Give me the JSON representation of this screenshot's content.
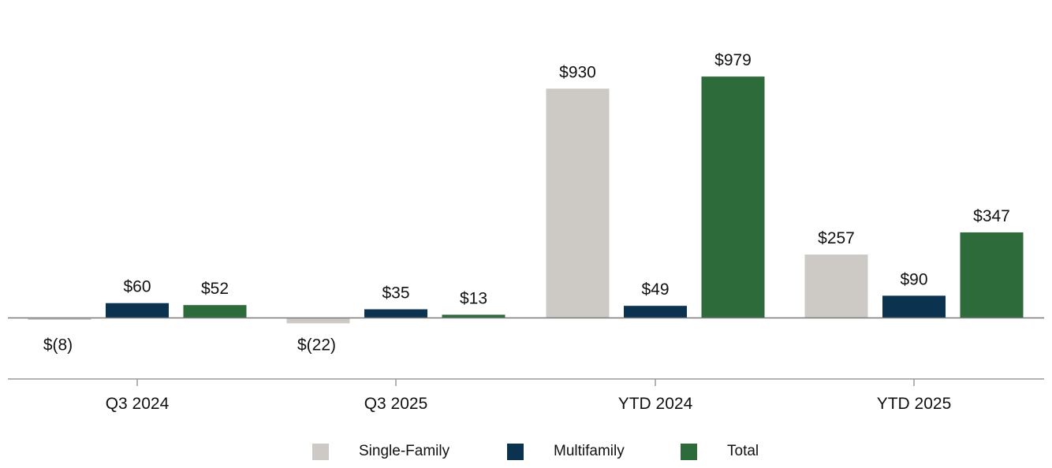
{
  "chart_data": {
    "type": "bar",
    "categories": [
      "Q3 2024",
      "Q3 2025",
      "YTD 2024",
      "YTD 2025"
    ],
    "series": [
      {
        "name": "Single-Family",
        "color": "#cdcac5",
        "values": [
          -8,
          -22,
          930,
          257
        ],
        "labels": [
          "$(8)",
          "$(22)",
          "$930",
          "$257"
        ]
      },
      {
        "name": "Multifamily",
        "color": "#0b3350",
        "values": [
          60,
          35,
          49,
          90
        ],
        "labels": [
          "$60",
          "$35",
          "$49",
          "$90"
        ]
      },
      {
        "name": "Total",
        "color": "#2e6b3a",
        "values": [
          52,
          13,
          979,
          347
        ],
        "labels": [
          "$52",
          "$13",
          "$979",
          "$347"
        ]
      }
    ],
    "ylim": [
      -250,
      1100
    ],
    "grid": false,
    "legend_position": "bottom"
  }
}
